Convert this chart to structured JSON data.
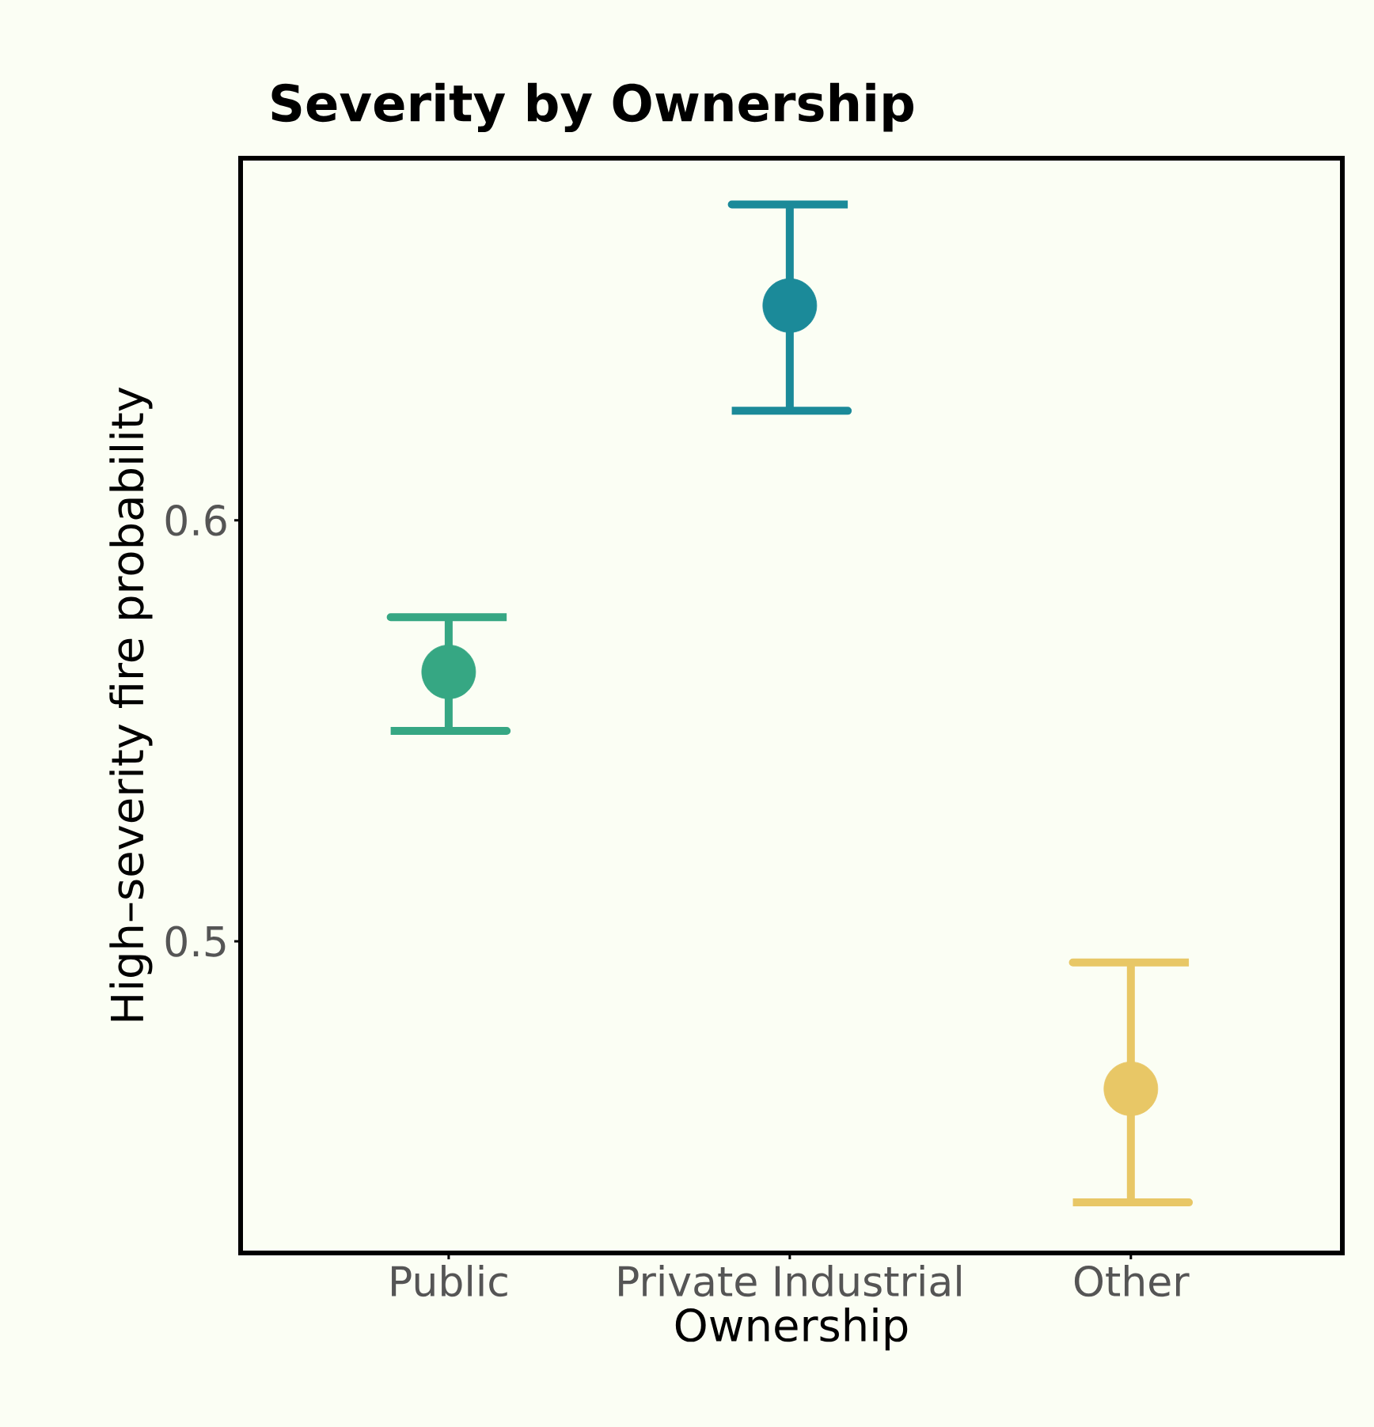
{
  "chart_data": {
    "type": "scatter",
    "title": "Severity by Ownership",
    "xlabel": "Ownership",
    "ylabel": "High–severity fire probability",
    "categories": [
      "Public",
      "Private Industrial",
      "Other"
    ],
    "values": [
      0.564,
      0.651,
      0.465
    ],
    "errors": [
      [
        0.55,
        0.577
      ],
      [
        0.626,
        0.675
      ],
      [
        0.438,
        0.495
      ]
    ],
    "colors": [
      "#36a783",
      "#1b8a99",
      "#e8c766"
    ],
    "ylim": [
      0.426,
      0.686
    ],
    "yticks": [
      0.5,
      0.6
    ]
  }
}
